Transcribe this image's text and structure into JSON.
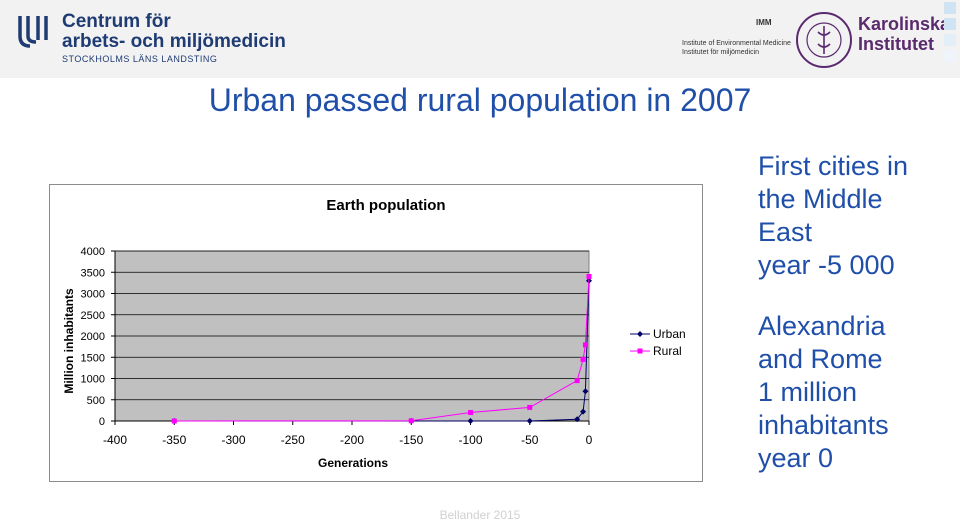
{
  "header": {
    "cam_line1": "Centrum för",
    "cam_line2": "arbets- och miljömedicin",
    "cam_line3": "STOCKHOLMS LÄNS LANDSTING",
    "imm_tag": "IMM",
    "imm_line1": "Institute of Environmental Medicine",
    "imm_line2": "Institutet för miljömedicin",
    "ki_line1": "Karolinska",
    "ki_line2": "Institutet",
    "cam_color": "#1f3b73",
    "ki_color": "#5a2a6e"
  },
  "slide": {
    "title": "Urban passed rural population in 2007",
    "footer": "Bellander 2015"
  },
  "side_text": {
    "block1": [
      "First cities in",
      "the Middle",
      "East",
      "year -5 000"
    ],
    "block2": [
      "Alexandria",
      "and Rome",
      "1 million",
      "inhabitants",
      "year 0"
    ]
  },
  "chart_data": {
    "type": "line",
    "title": "Earth population",
    "xlabel": "Generations",
    "ylabel": "Million inhabitants",
    "xlim": [
      -400,
      0
    ],
    "ylim": [
      0,
      4000
    ],
    "xticks": [
      -400,
      -350,
      -300,
      -250,
      -200,
      -150,
      -100,
      -50,
      0
    ],
    "yticks": [
      0,
      500,
      1000,
      1500,
      2000,
      2500,
      3000,
      3500,
      4000
    ],
    "legend_position": "right",
    "series": [
      {
        "name": "Urban",
        "color": "#000066",
        "marker": "diamond",
        "points": [
          [
            -350,
            0
          ],
          [
            -150,
            0
          ],
          [
            -100,
            0
          ],
          [
            -50,
            0
          ],
          [
            -10,
            40
          ],
          [
            -5,
            220
          ],
          [
            -3,
            700
          ],
          [
            0,
            3300
          ]
        ]
      },
      {
        "name": "Rural",
        "color": "#ff00ff",
        "marker": "square",
        "points": [
          [
            -350,
            0
          ],
          [
            -150,
            5
          ],
          [
            -100,
            200
          ],
          [
            -50,
            320
          ],
          [
            -10,
            950
          ],
          [
            -5,
            1450
          ],
          [
            -3,
            1790
          ],
          [
            0,
            3400
          ]
        ]
      }
    ]
  }
}
